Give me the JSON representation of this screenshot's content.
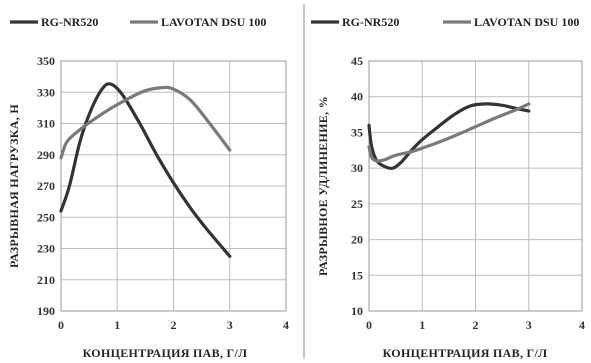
{
  "chart_data": [
    {
      "type": "line",
      "title": "",
      "xlabel": "КОНЦЕНТРАЦИЯ ПАВ, Г/Л",
      "ylabel": "РАЗРЫВНАЯ НАГРУЗКА, Н",
      "xlim": [
        0,
        4
      ],
      "ylim": [
        190,
        350
      ],
      "xticks": [
        "0",
        "1",
        "2",
        "3",
        "4"
      ],
      "yticks": [
        "190",
        "210",
        "230",
        "250",
        "270",
        "290",
        "310",
        "330",
        "350"
      ],
      "grid": true,
      "legend": "top",
      "series": [
        {
          "name": "RG-NR520",
          "color": "#333333",
          "x": [
            0,
            0.15,
            0.35,
            0.55,
            0.75,
            0.9,
            1.1,
            1.4,
            1.7,
            2.0,
            2.3,
            2.6,
            3.0
          ],
          "y": [
            254,
            270,
            300,
            320,
            333,
            335,
            328,
            310,
            290,
            272,
            256,
            242,
            225
          ]
        },
        {
          "name": "LAVOTAN DSU 100",
          "color": "#7a7a7a",
          "x": [
            0,
            0.1,
            0.3,
            0.6,
            0.9,
            1.2,
            1.5,
            1.8,
            2.0,
            2.3,
            2.6,
            3.0
          ],
          "y": [
            288,
            298,
            305,
            313,
            320,
            326,
            331,
            333,
            332,
            325,
            312,
            293
          ]
        }
      ]
    },
    {
      "type": "line",
      "title": "",
      "xlabel": "КОНЦЕНТРАЦИЯ ПАВ, Г/Л",
      "ylabel": "РАЗРЫВНОЕ УДЛИНЕНИЕ, %",
      "xlim": [
        0,
        4
      ],
      "ylim": [
        10,
        45
      ],
      "xticks": [
        "0",
        "1",
        "2",
        "3",
        "4"
      ],
      "yticks": [
        "10",
        "15",
        "20",
        "25",
        "30",
        "35",
        "40",
        "45"
      ],
      "grid": true,
      "legend": "top",
      "series": [
        {
          "name": "RG-NR520",
          "color": "#333333",
          "x": [
            0,
            0.05,
            0.15,
            0.3,
            0.45,
            0.6,
            0.8,
            1.0,
            1.3,
            1.6,
            1.9,
            2.2,
            2.5,
            2.8,
            3.0
          ],
          "y": [
            36,
            33,
            31,
            30.2,
            30,
            30.8,
            32.5,
            34,
            35.8,
            37.5,
            38.7,
            39,
            38.8,
            38.3,
            38
          ]
        },
        {
          "name": "LAVOTAN DSU 100",
          "color": "#7a7a7a",
          "x": [
            0,
            0.05,
            0.15,
            0.3,
            0.5,
            0.8,
            1.0,
            1.3,
            1.6,
            2.0,
            2.4,
            2.8,
            3.0
          ],
          "y": [
            33,
            31.5,
            31,
            31.2,
            31.8,
            32.3,
            32.8,
            33.6,
            34.5,
            35.8,
            37.1,
            38.3,
            39
          ]
        }
      ]
    }
  ]
}
